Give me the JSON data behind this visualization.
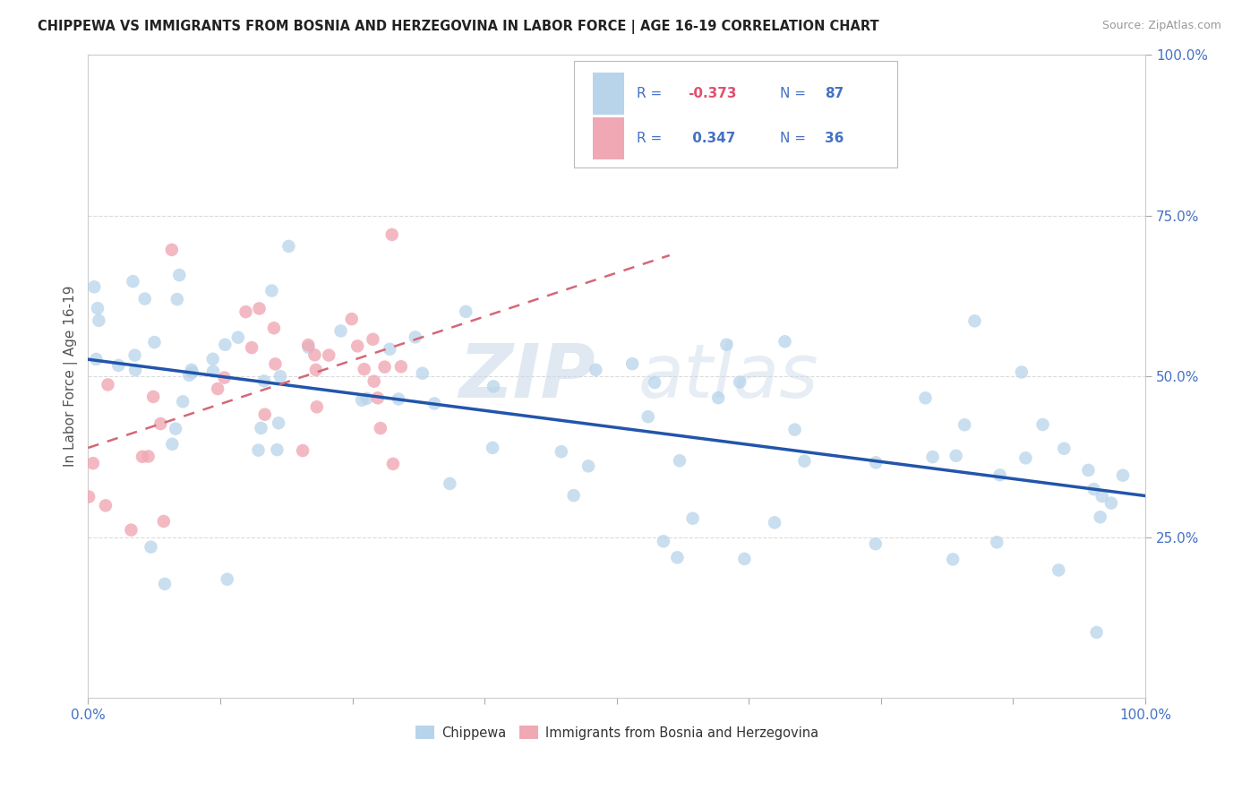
{
  "title": "CHIPPEWA VS IMMIGRANTS FROM BOSNIA AND HERZEGOVINA IN LABOR FORCE | AGE 16-19 CORRELATION CHART",
  "source": "Source: ZipAtlas.com",
  "ylabel": "In Labor Force | Age 16-19",
  "r1": -0.373,
  "n1": 87,
  "r2": 0.347,
  "n2": 36,
  "watermark_part1": "ZIP",
  "watermark_part2": "atlas",
  "chippewa_color": "#b8d4ea",
  "bosnia_color": "#f0a8b4",
  "trend_blue_color": "#2255aa",
  "trend_pink_color": "#d46878",
  "text_blue": "#4472c4",
  "text_dark": "#333333",
  "background": "#ffffff",
  "grid_color": "#cccccc",
  "r1_color": "#e05070",
  "r2_color": "#4472c4",
  "n_color": "#4472c4"
}
